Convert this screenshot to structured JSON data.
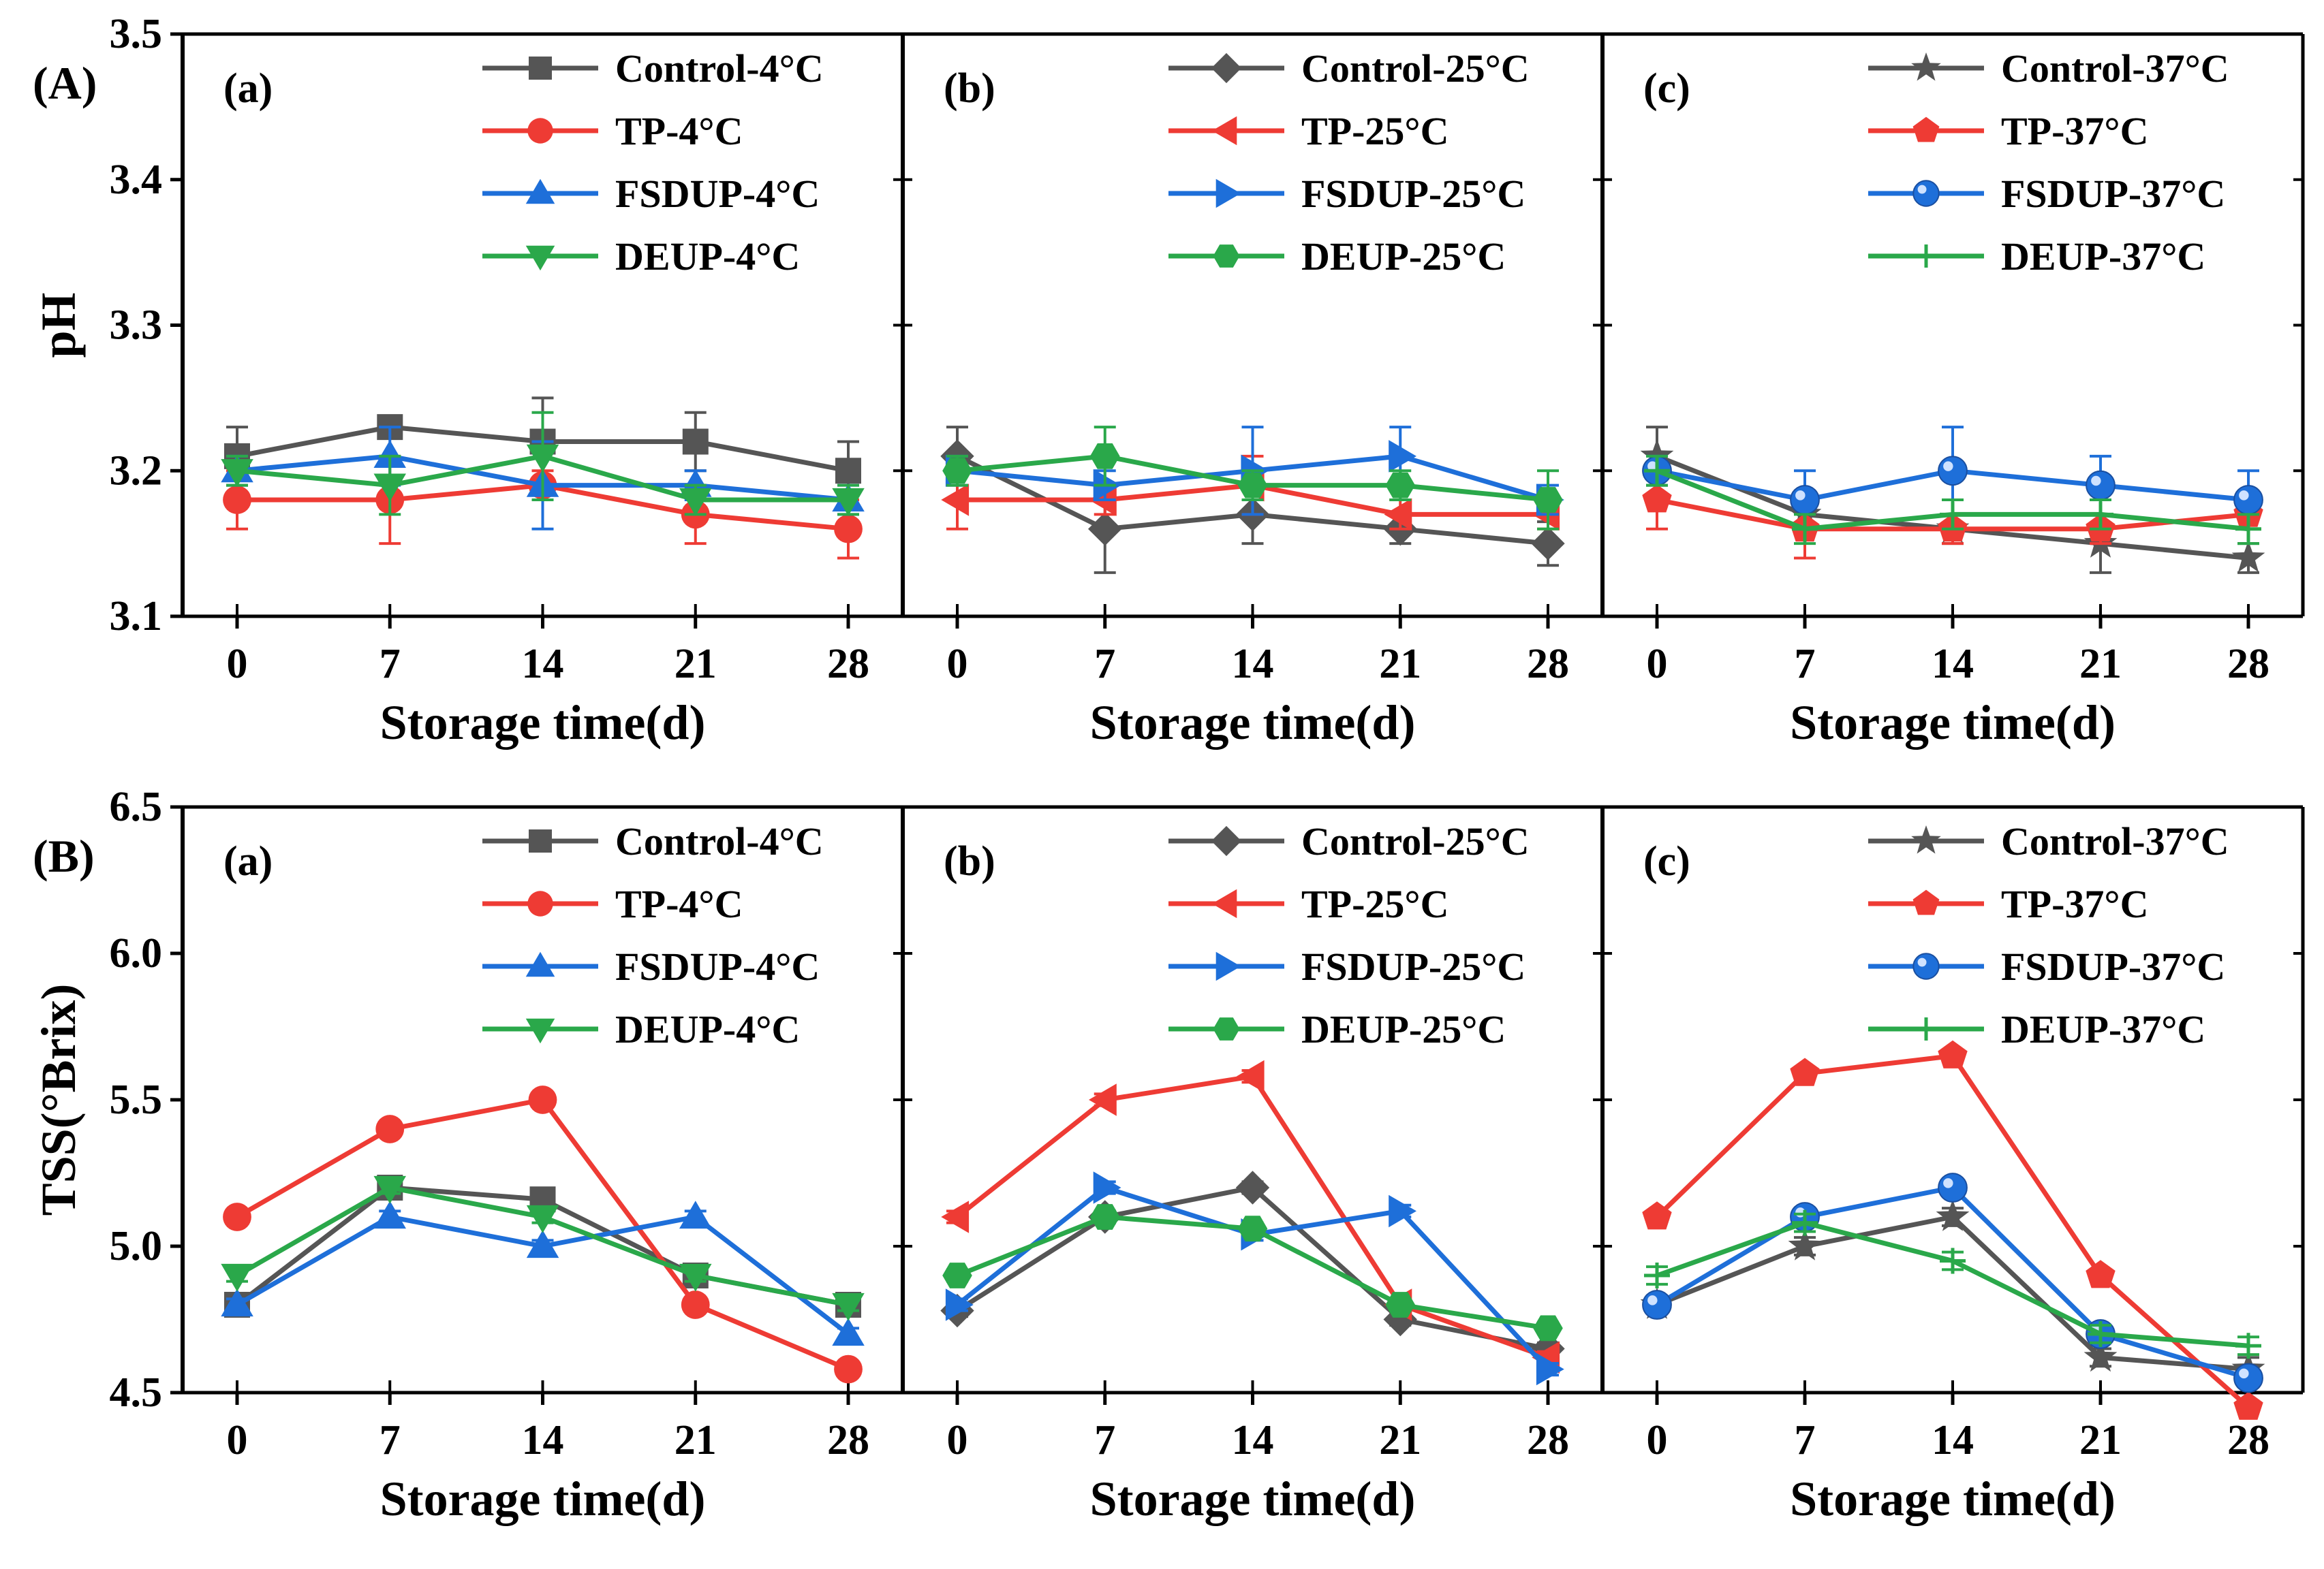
{
  "figure": {
    "section_labels": [
      "(A)",
      "(B)"
    ]
  },
  "chart_data": [
    {
      "type": "line",
      "section": "(A)",
      "panel": "(a)",
      "xlabel": "Storage time(d)",
      "ylabel": "pH",
      "categories": [
        0,
        7,
        14,
        21,
        28
      ],
      "ylim": [
        3.1,
        3.5
      ],
      "yticks": [
        "3.1",
        "3.2",
        "3.3",
        "3.4",
        "3.5"
      ],
      "series": [
        {
          "name": "Control-4°C",
          "color": "#555555",
          "marker": "square",
          "values": [
            3.21,
            3.23,
            3.22,
            3.22,
            3.2
          ],
          "errors": [
            0.02,
            0.005,
            0.03,
            0.02,
            0.02
          ]
        },
        {
          "name": "TP-4°C",
          "color": "#ee3b34",
          "marker": "circle",
          "values": [
            3.18,
            3.18,
            3.19,
            3.17,
            3.16
          ],
          "errors": [
            0.02,
            0.03,
            0.01,
            0.02,
            0.02
          ]
        },
        {
          "name": "FSDUP-4°C",
          "color": "#1e6fd9",
          "marker": "triangle-up",
          "values": [
            3.2,
            3.21,
            3.19,
            3.19,
            3.18
          ],
          "errors": [
            0.01,
            0.02,
            0.03,
            0.01,
            0.01
          ]
        },
        {
          "name": "DEUP-4°C",
          "color": "#2aa84a",
          "marker": "triangle-down",
          "values": [
            3.2,
            3.19,
            3.21,
            3.18,
            3.18
          ],
          "errors": [
            0.01,
            0.02,
            0.03,
            0.01,
            0.01
          ]
        }
      ]
    },
    {
      "type": "line",
      "section": "(A)",
      "panel": "(b)",
      "xlabel": "Storage time(d)",
      "ylabel": "pH",
      "categories": [
        0,
        7,
        14,
        21,
        28
      ],
      "ylim": [
        3.1,
        3.5
      ],
      "yticks": [
        "3.1",
        "3.2",
        "3.3",
        "3.4",
        "3.5"
      ],
      "series": [
        {
          "name": "Control-25°C",
          "color": "#555555",
          "marker": "diamond",
          "values": [
            3.21,
            3.16,
            3.17,
            3.16,
            3.15
          ],
          "errors": [
            0.02,
            0.03,
            0.02,
            0.01,
            0.015
          ]
        },
        {
          "name": "TP-25°C",
          "color": "#ee3b34",
          "marker": "triangle-left",
          "values": [
            3.18,
            3.18,
            3.19,
            3.17,
            3.17
          ],
          "errors": [
            0.02,
            0.01,
            0.02,
            0.01,
            0.01
          ]
        },
        {
          "name": "FSDUP-25°C",
          "color": "#1e6fd9",
          "marker": "triangle-right",
          "values": [
            3.2,
            3.19,
            3.2,
            3.21,
            3.18
          ],
          "errors": [
            0.01,
            0.01,
            0.03,
            0.02,
            0.01
          ]
        },
        {
          "name": "DEUP-25°C",
          "color": "#2aa84a",
          "marker": "hexagon",
          "values": [
            3.2,
            3.21,
            3.19,
            3.19,
            3.18
          ],
          "errors": [
            0.01,
            0.02,
            0.01,
            0.01,
            0.02
          ]
        }
      ]
    },
    {
      "type": "line",
      "section": "(A)",
      "panel": "(c)",
      "xlabel": "Storage time(d)",
      "ylabel": "pH",
      "categories": [
        0,
        7,
        14,
        21,
        28
      ],
      "ylim": [
        3.1,
        3.5
      ],
      "yticks": [
        "3.1",
        "3.2",
        "3.3",
        "3.4",
        "3.5"
      ],
      "series": [
        {
          "name": "Control-37°C",
          "color": "#555555",
          "marker": "star",
          "values": [
            3.21,
            3.17,
            3.16,
            3.15,
            3.14
          ],
          "errors": [
            0.02,
            0.01,
            0.01,
            0.02,
            0.01
          ]
        },
        {
          "name": "TP-37°C",
          "color": "#ee3b34",
          "marker": "pentagon",
          "values": [
            3.18,
            3.16,
            3.16,
            3.16,
            3.17
          ],
          "errors": [
            0.02,
            0.02,
            0.01,
            0.01,
            0.01
          ]
        },
        {
          "name": "FSDUP-37°C",
          "color": "#1e6fd9",
          "marker": "sphere",
          "values": [
            3.2,
            3.18,
            3.2,
            3.19,
            3.18
          ],
          "errors": [
            0.01,
            0.02,
            0.03,
            0.02,
            0.02
          ]
        },
        {
          "name": "DEUP-37°C",
          "color": "#2aa84a",
          "marker": "plus",
          "values": [
            3.2,
            3.16,
            3.17,
            3.17,
            3.16
          ],
          "errors": [
            0.01,
            0.01,
            0.01,
            0.01,
            0.01
          ]
        }
      ]
    },
    {
      "type": "line",
      "section": "(B)",
      "panel": "(a)",
      "xlabel": "Storage time(d)",
      "ylabel": "TSS(°Brix)",
      "categories": [
        0,
        7,
        14,
        21,
        28
      ],
      "ylim": [
        4.5,
        6.5
      ],
      "yticks": [
        "4.5",
        "5.0",
        "5.5",
        "6.0",
        "6.5"
      ],
      "series": [
        {
          "name": "Control-4°C",
          "color": "#555555",
          "marker": "square",
          "values": [
            4.8,
            5.2,
            5.16,
            4.9,
            4.8
          ],
          "errors": [
            0.02,
            0.02,
            0.02,
            0.02,
            0.02
          ]
        },
        {
          "name": "TP-4°C",
          "color": "#ee3b34",
          "marker": "circle",
          "values": [
            5.1,
            5.4,
            5.5,
            4.8,
            4.58
          ],
          "errors": [
            0.02,
            0.02,
            0.02,
            0.02,
            0.02
          ]
        },
        {
          "name": "FSDUP-4°C",
          "color": "#1e6fd9",
          "marker": "triangle-up",
          "values": [
            4.8,
            5.1,
            5.0,
            5.1,
            4.7
          ],
          "errors": [
            0.02,
            0.02,
            0.02,
            0.02,
            0.02
          ]
        },
        {
          "name": "DEUP-4°C",
          "color": "#2aa84a",
          "marker": "triangle-down",
          "values": [
            4.9,
            5.2,
            5.1,
            4.9,
            4.8
          ],
          "errors": [
            0.02,
            0.02,
            0.02,
            0.02,
            0.02
          ]
        }
      ]
    },
    {
      "type": "line",
      "section": "(B)",
      "panel": "(b)",
      "xlabel": "Storage time(d)",
      "ylabel": "TSS(°Brix)",
      "categories": [
        0,
        7,
        14,
        21,
        28
      ],
      "ylim": [
        4.5,
        6.5
      ],
      "yticks": [
        "4.5",
        "5.0",
        "5.5",
        "6.0",
        "6.5"
      ],
      "series": [
        {
          "name": "Control-25°C",
          "color": "#555555",
          "marker": "diamond",
          "values": [
            4.78,
            5.1,
            5.2,
            4.75,
            4.65
          ],
          "errors": [
            0.02,
            0.02,
            0.02,
            0.02,
            0.02
          ]
        },
        {
          "name": "TP-25°C",
          "color": "#ee3b34",
          "marker": "triangle-left",
          "values": [
            5.1,
            5.5,
            5.58,
            4.8,
            4.62
          ],
          "errors": [
            0.02,
            0.02,
            0.02,
            0.02,
            0.02
          ]
        },
        {
          "name": "FSDUP-25°C",
          "color": "#1e6fd9",
          "marker": "triangle-right",
          "values": [
            4.8,
            5.2,
            5.04,
            5.12,
            4.58
          ],
          "errors": [
            0.02,
            0.02,
            0.02,
            0.02,
            0.02
          ]
        },
        {
          "name": "DEUP-25°C",
          "color": "#2aa84a",
          "marker": "hexagon",
          "values": [
            4.9,
            5.1,
            5.06,
            4.8,
            4.72
          ],
          "errors": [
            0.02,
            0.02,
            0.02,
            0.02,
            0.02
          ]
        }
      ]
    },
    {
      "type": "line",
      "section": "(B)",
      "panel": "(c)",
      "xlabel": "Storage time(d)",
      "ylabel": "TSS(°Brix)",
      "categories": [
        0,
        7,
        14,
        21,
        28
      ],
      "ylim": [
        4.5,
        6.5
      ],
      "yticks": [
        "4.5",
        "5.0",
        "5.5",
        "6.0",
        "6.5"
      ],
      "series": [
        {
          "name": "Control-37°C",
          "color": "#555555",
          "marker": "star",
          "values": [
            4.8,
            5.0,
            5.1,
            4.62,
            4.58
          ],
          "errors": [
            0.02,
            0.03,
            0.03,
            0.03,
            0.04
          ]
        },
        {
          "name": "TP-37°C",
          "color": "#ee3b34",
          "marker": "pentagon",
          "values": [
            5.1,
            5.59,
            5.65,
            4.9,
            4.45
          ],
          "errors": [
            0.02,
            0.02,
            0.02,
            0.02,
            0.02
          ]
        },
        {
          "name": "FSDUP-37°C",
          "color": "#1e6fd9",
          "marker": "sphere",
          "values": [
            4.8,
            5.1,
            5.2,
            4.7,
            4.55
          ],
          "errors": [
            0.02,
            0.02,
            0.02,
            0.02,
            0.02
          ]
        },
        {
          "name": "DEUP-37°C",
          "color": "#2aa84a",
          "marker": "plus",
          "values": [
            4.9,
            5.08,
            4.95,
            4.7,
            4.66
          ],
          "errors": [
            0.03,
            0.03,
            0.03,
            0.03,
            0.03
          ]
        }
      ]
    }
  ]
}
